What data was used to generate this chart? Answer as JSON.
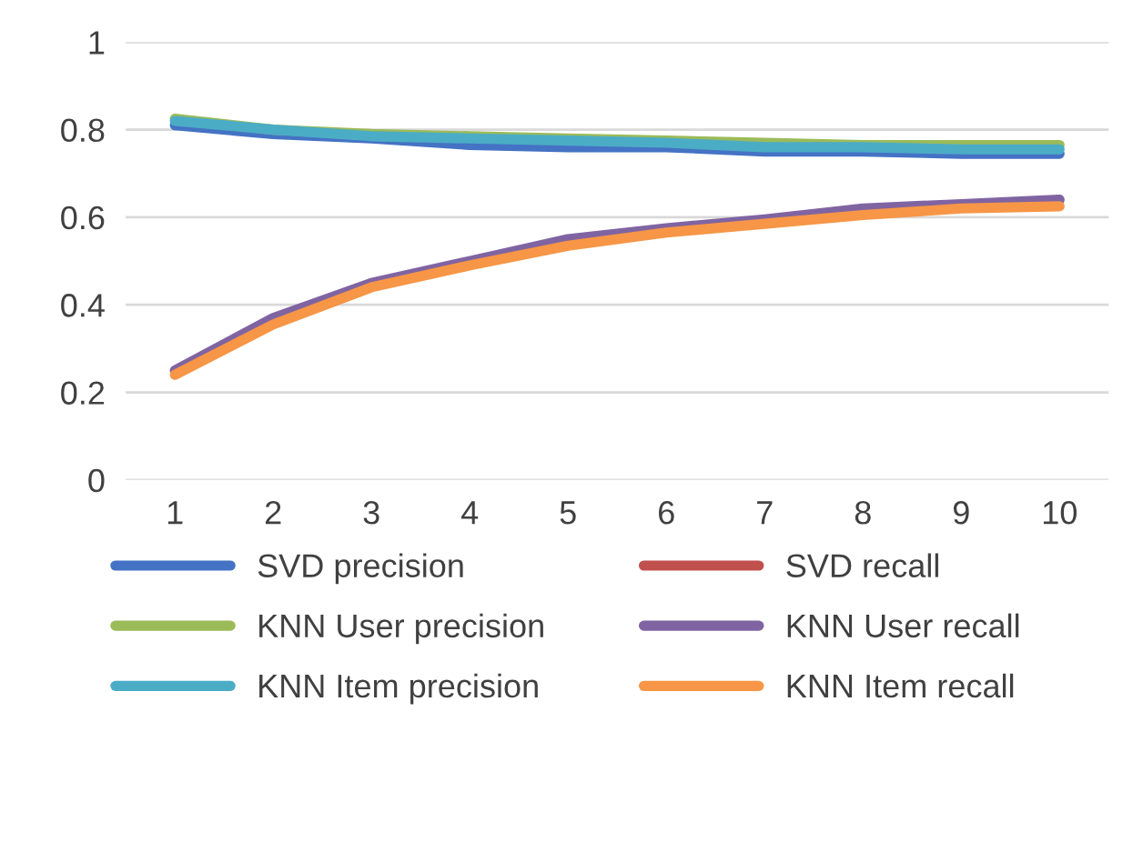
{
  "chart_data": {
    "type": "line",
    "categories": [
      "1",
      "2",
      "3",
      "4",
      "5",
      "6",
      "7",
      "8",
      "9",
      "10"
    ],
    "ylim": [
      0,
      1
    ],
    "yticks": [
      0,
      0.2,
      0.4,
      0.6,
      0.8,
      1
    ],
    "grid": "y",
    "legend": "bottom",
    "marker": "none",
    "line_style": "solid",
    "series": [
      {
        "name": "SVD precision",
        "color": "#4472c4",
        "values": [
          0.81,
          0.79,
          0.78,
          0.765,
          0.76,
          0.76,
          0.75,
          0.75,
          0.745,
          0.745
        ]
      },
      {
        "name": "SVD recall",
        "color": "#c0504d",
        "values": [
          null,
          null,
          null,
          null,
          null,
          null,
          null,
          null,
          null,
          null
        ]
      },
      {
        "name": "KNN User precision",
        "color": "#9bbb59",
        "values": [
          0.825,
          0.8,
          0.79,
          0.785,
          0.78,
          0.775,
          0.77,
          0.765,
          0.765,
          0.765
        ]
      },
      {
        "name": "KNN User recall",
        "color": "#8064a2",
        "values": [
          0.25,
          0.37,
          0.45,
          0.5,
          0.55,
          0.575,
          0.595,
          0.62,
          0.63,
          0.64
        ]
      },
      {
        "name": "KNN Item precision",
        "color": "#4bacc6",
        "values": [
          0.82,
          0.8,
          0.785,
          0.78,
          0.775,
          0.77,
          0.76,
          0.76,
          0.755,
          0.755
        ]
      },
      {
        "name": "KNN Item recall",
        "color": "#f79646",
        "values": [
          0.24,
          0.355,
          0.44,
          0.49,
          0.535,
          0.565,
          0.585,
          0.605,
          0.62,
          0.625
        ]
      }
    ]
  }
}
